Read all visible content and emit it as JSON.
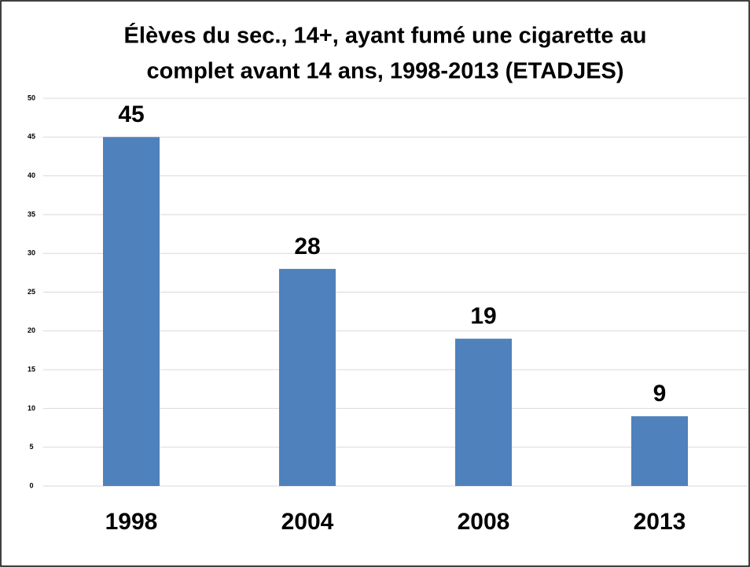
{
  "chart_data": {
    "type": "bar",
    "title": [
      "Élèves du sec., 14+, ayant fumé une cigarette au",
      "complet avant 14 ans, 1998-2013 (ETADJES)"
    ],
    "categories": [
      "1998",
      "2004",
      "2008",
      "2013"
    ],
    "values": [
      45,
      28,
      19,
      9
    ],
    "color": "#4f81bd",
    "ylim": [
      0,
      50
    ],
    "yticks": [
      0,
      5,
      10,
      15,
      20,
      25,
      30,
      35,
      40,
      45,
      50
    ],
    "grid": true
  }
}
